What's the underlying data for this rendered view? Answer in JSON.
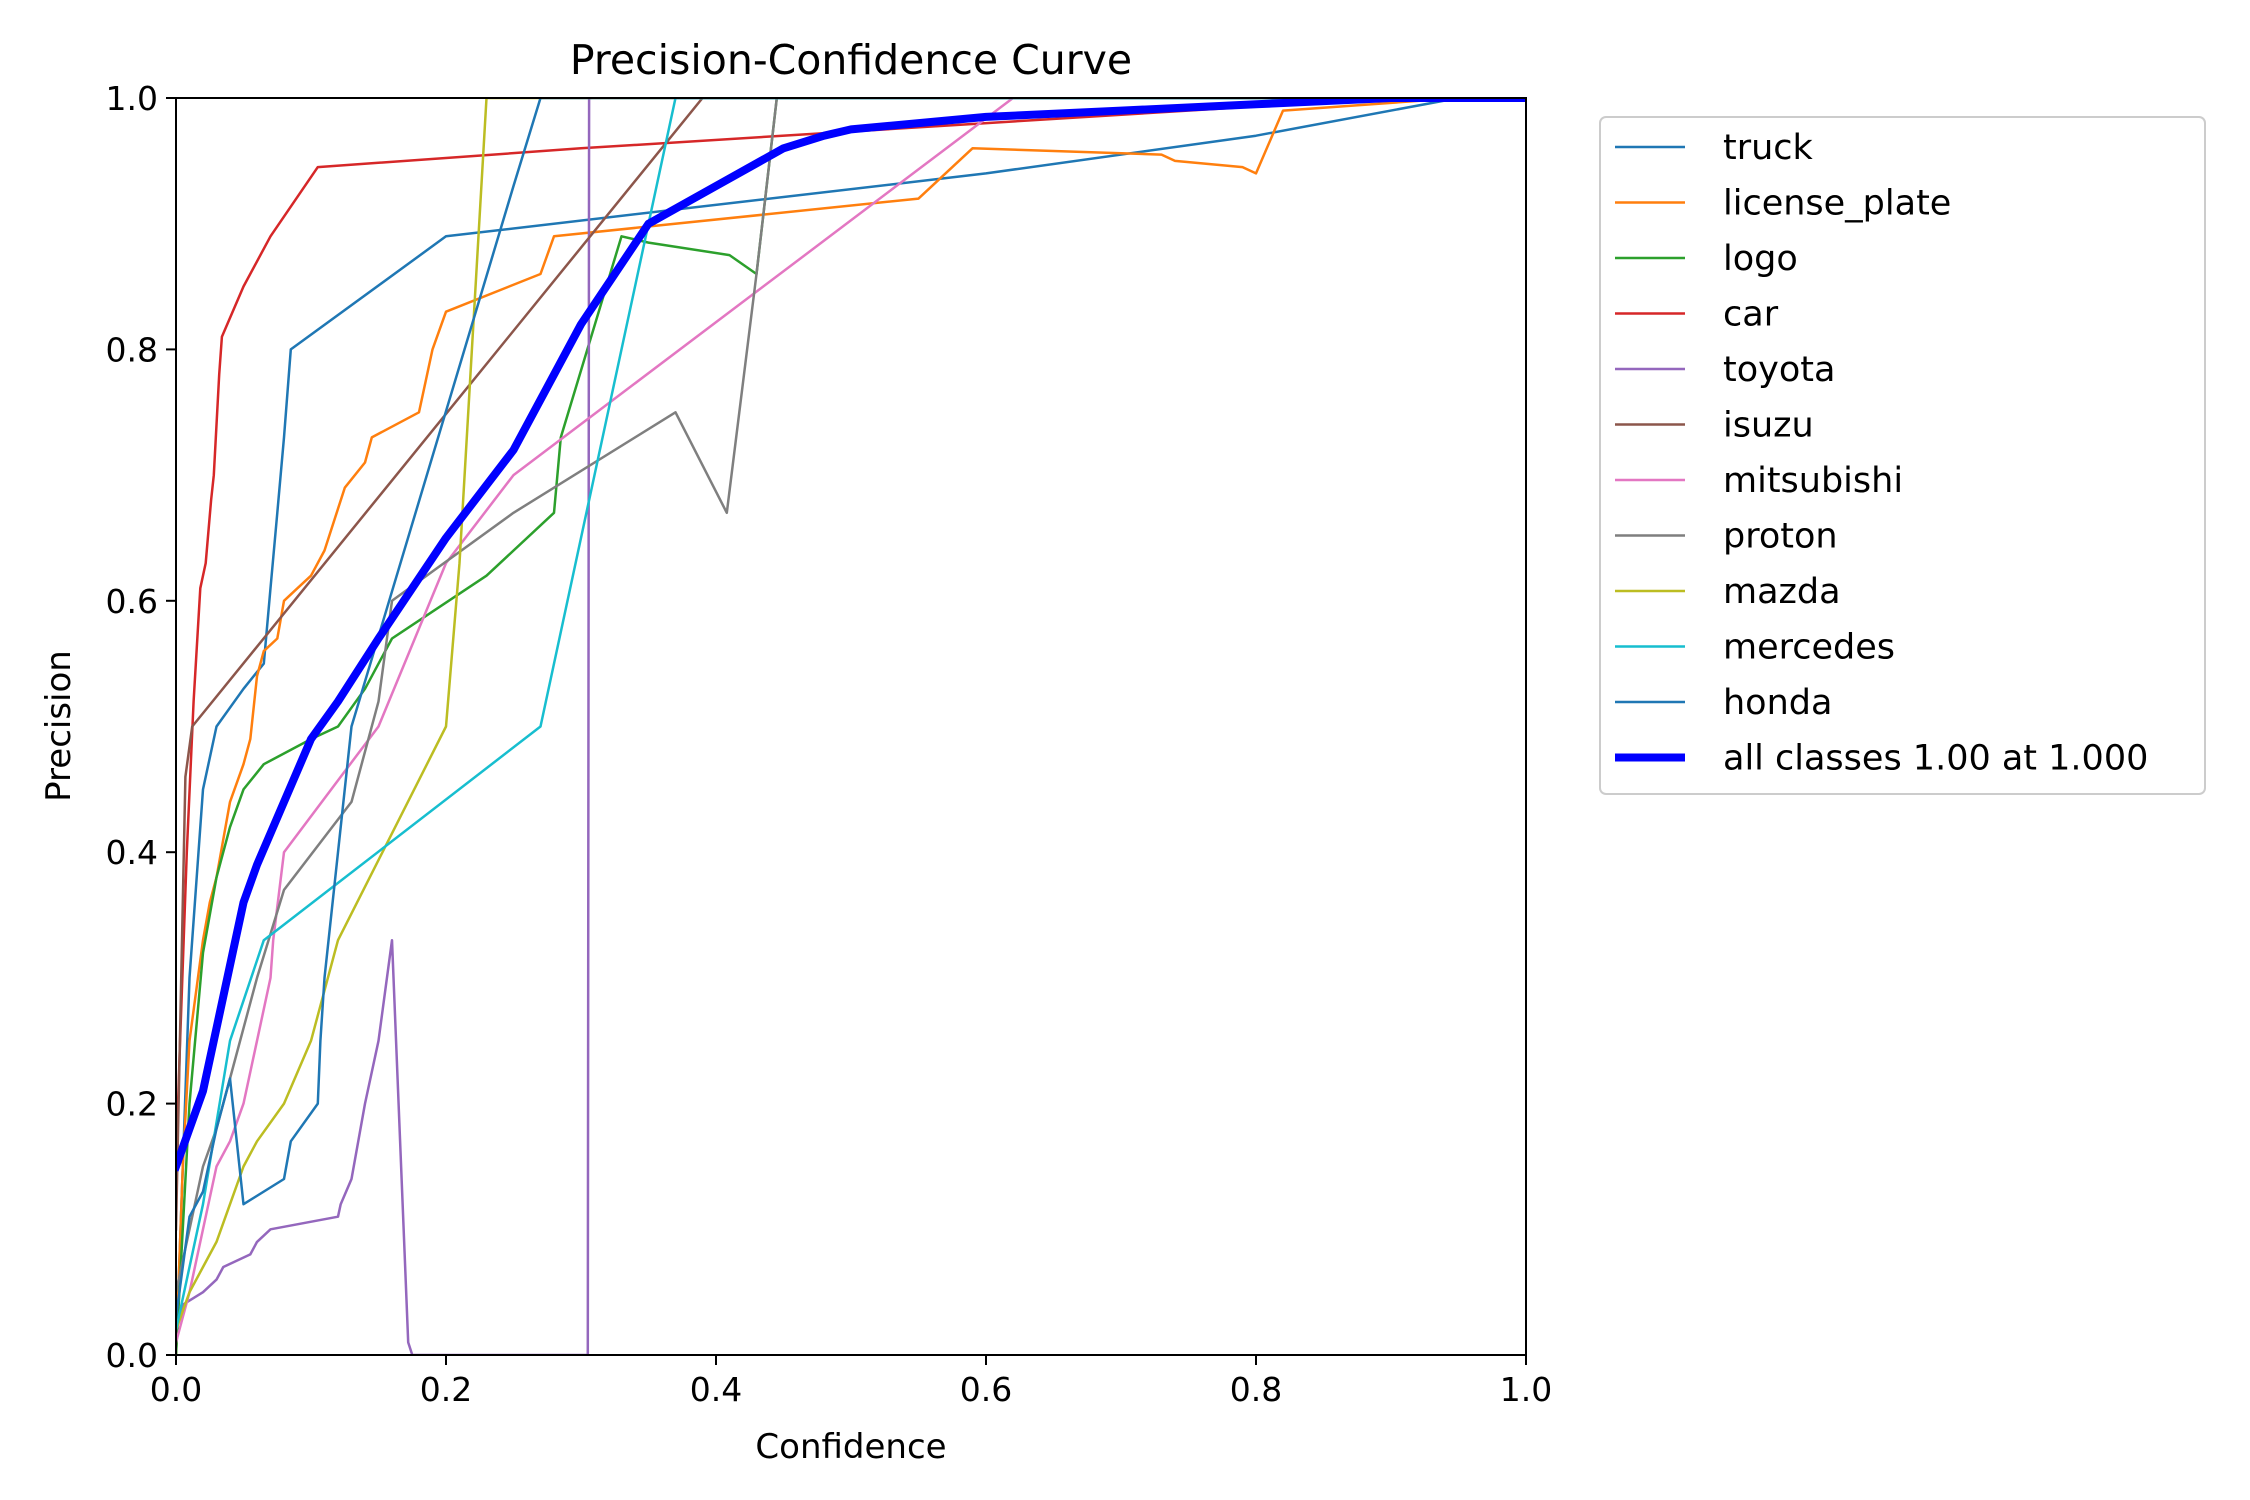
{
  "chart_data": {
    "type": "line",
    "title": "Precision-Confidence Curve",
    "xlabel": "Confidence",
    "ylabel": "Precision",
    "xlim": [
      0,
      1
    ],
    "ylim": [
      0,
      1
    ],
    "xticks": [
      "0.0",
      "0.2",
      "0.4",
      "0.6",
      "0.8",
      "1.0"
    ],
    "yticks": [
      "0.0",
      "0.2",
      "0.4",
      "0.6",
      "0.8",
      "1.0"
    ],
    "grid": false,
    "legend_position": "outside-right",
    "series": [
      {
        "name": "truck",
        "color": "#1f77b4",
        "width": 2.5,
        "x": [
          0,
          0.005,
          0.01,
          0.02,
          0.03,
          0.05,
          0.065,
          0.07,
          0.075,
          0.08,
          0.085,
          0.2,
          0.6,
          0.8,
          0.95,
          1.0
        ],
        "y": [
          0,
          0.15,
          0.3,
          0.45,
          0.5,
          0.53,
          0.55,
          0.61,
          0.67,
          0.73,
          0.8,
          0.89,
          0.94,
          0.97,
          1.0,
          1.0
        ]
      },
      {
        "name": "license_plate",
        "color": "#ff7f0e",
        "width": 2.5,
        "x": [
          0,
          0.005,
          0.01,
          0.02,
          0.025,
          0.03,
          0.04,
          0.05,
          0.055,
          0.06,
          0.065,
          0.075,
          0.08,
          0.09,
          0.1,
          0.11,
          0.125,
          0.14,
          0.145,
          0.18,
          0.19,
          0.2,
          0.27,
          0.28,
          0.55,
          0.59,
          0.73,
          0.74,
          0.79,
          0.8,
          0.82,
          0.95,
          1.0
        ],
        "y": [
          0,
          0.15,
          0.25,
          0.33,
          0.36,
          0.38,
          0.44,
          0.47,
          0.49,
          0.54,
          0.56,
          0.57,
          0.6,
          0.61,
          0.62,
          0.64,
          0.69,
          0.71,
          0.73,
          0.75,
          0.8,
          0.83,
          0.86,
          0.89,
          0.92,
          0.96,
          0.955,
          0.95,
          0.945,
          0.94,
          0.99,
          1.0,
          1.0
        ]
      },
      {
        "name": "logo",
        "color": "#2ca02c",
        "width": 2.5,
        "x": [
          0,
          0.01,
          0.02,
          0.03,
          0.04,
          0.05,
          0.065,
          0.1,
          0.12,
          0.14,
          0.16,
          0.23,
          0.28,
          0.285,
          0.33,
          0.35,
          0.41,
          0.43,
          0.445,
          1.0
        ],
        "y": [
          0,
          0.2,
          0.32,
          0.38,
          0.42,
          0.45,
          0.47,
          0.49,
          0.5,
          0.53,
          0.57,
          0.62,
          0.67,
          0.73,
          0.89,
          0.885,
          0.875,
          0.86,
          1.0,
          1.0
        ]
      },
      {
        "name": "car",
        "color": "#d62728",
        "width": 2.5,
        "x": [
          0,
          0.003,
          0.008,
          0.013,
          0.018,
          0.022,
          0.026,
          0.028,
          0.032,
          0.034,
          0.05,
          0.07,
          0.105,
          0.3,
          0.9,
          1.0
        ],
        "y": [
          0.15,
          0.25,
          0.4,
          0.52,
          0.61,
          0.63,
          0.68,
          0.7,
          0.78,
          0.81,
          0.85,
          0.89,
          0.945,
          0.96,
          1.0,
          1.0
        ]
      },
      {
        "name": "toyota",
        "color": "#9467bd",
        "width": 2.5,
        "x": [
          0,
          0.005,
          0.02,
          0.03,
          0.035,
          0.055,
          0.06,
          0.07,
          0.12,
          0.122,
          0.13,
          0.14,
          0.15,
          0.16,
          0.172,
          0.175,
          0.305,
          0.306,
          0.307
        ],
        "y": [
          0.02,
          0.04,
          0.05,
          0.06,
          0.07,
          0.08,
          0.09,
          0.1,
          0.11,
          0.12,
          0.14,
          0.2,
          0.25,
          0.33,
          0.01,
          0.0,
          0.0,
          1.0,
          1.0
        ]
      },
      {
        "name": "isuzu",
        "color": "#8c564b",
        "width": 2.5,
        "x": [
          0,
          0.007,
          0.012,
          0.39,
          1.0
        ],
        "y": [
          0.1,
          0.46,
          0.5,
          1.0,
          1.0
        ]
      },
      {
        "name": "mitsubishi",
        "color": "#e377c2",
        "width": 2.5,
        "x": [
          0,
          0.01,
          0.02,
          0.03,
          0.04,
          0.05,
          0.06,
          0.07,
          0.072,
          0.08,
          0.15,
          0.2,
          0.25,
          0.62,
          1.0
        ],
        "y": [
          0.01,
          0.05,
          0.1,
          0.15,
          0.17,
          0.2,
          0.25,
          0.3,
          0.33,
          0.4,
          0.5,
          0.63,
          0.7,
          1.0,
          1.0
        ]
      },
      {
        "name": "proton",
        "color": "#7f7f7f",
        "width": 2.5,
        "x": [
          0,
          0.01,
          0.02,
          0.03,
          0.04,
          0.05,
          0.06,
          0.08,
          0.13,
          0.15,
          0.16,
          0.25,
          0.37,
          0.408,
          0.43,
          0.445,
          1.0
        ],
        "y": [
          0.05,
          0.1,
          0.15,
          0.18,
          0.22,
          0.26,
          0.3,
          0.37,
          0.44,
          0.52,
          0.6,
          0.67,
          0.75,
          0.67,
          0.86,
          1.0,
          1.0
        ]
      },
      {
        "name": "mazda",
        "color": "#bcbd22",
        "width": 2.5,
        "x": [
          0,
          0.01,
          0.02,
          0.03,
          0.04,
          0.05,
          0.06,
          0.08,
          0.1,
          0.12,
          0.2,
          0.21,
          0.23,
          1.0
        ],
        "y": [
          0.02,
          0.05,
          0.07,
          0.09,
          0.12,
          0.15,
          0.17,
          0.2,
          0.25,
          0.33,
          0.5,
          0.63,
          1.0,
          1.0
        ]
      },
      {
        "name": "mercedes",
        "color": "#17becf",
        "width": 2.5,
        "x": [
          0,
          0.01,
          0.02,
          0.04,
          0.065,
          0.27,
          0.37,
          0.4,
          1.0
        ],
        "y": [
          0.02,
          0.07,
          0.12,
          0.25,
          0.33,
          0.5,
          1.0,
          1.0,
          1.0
        ]
      },
      {
        "name": "honda",
        "color": "#1f77b4",
        "width": 2.5,
        "x": [
          0,
          0.01,
          0.02,
          0.03,
          0.04,
          0.05,
          0.08,
          0.085,
          0.105,
          0.107,
          0.11,
          0.12,
          0.13,
          0.25,
          0.27,
          1.0
        ],
        "y": [
          0.03,
          0.11,
          0.13,
          0.18,
          0.22,
          0.12,
          0.14,
          0.17,
          0.2,
          0.25,
          0.3,
          0.4,
          0.5,
          0.93,
          1.0,
          1.0
        ]
      },
      {
        "name": "all classes 1.00 at 1.000",
        "color": "#0000ff",
        "width": 8,
        "x": [
          0,
          0.02,
          0.03,
          0.04,
          0.05,
          0.06,
          0.08,
          0.1,
          0.12,
          0.15,
          0.2,
          0.25,
          0.3,
          0.35,
          0.4,
          0.45,
          0.48,
          0.5,
          0.6,
          0.7,
          0.8,
          0.9,
          1.0
        ],
        "y": [
          0.15,
          0.21,
          0.26,
          0.31,
          0.36,
          0.39,
          0.44,
          0.49,
          0.52,
          0.57,
          0.65,
          0.72,
          0.82,
          0.9,
          0.93,
          0.96,
          0.97,
          0.975,
          0.985,
          0.99,
          0.995,
          1.0,
          1.0
        ]
      }
    ]
  }
}
